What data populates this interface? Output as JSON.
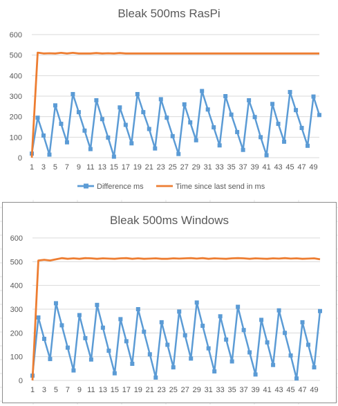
{
  "chart_data": [
    {
      "type": "line",
      "title": "Bleak 500ms RasPi",
      "ylim": [
        0,
        600
      ],
      "yticks": [
        0,
        100,
        200,
        300,
        400,
        500,
        600
      ],
      "x": [
        1,
        2,
        3,
        4,
        5,
        6,
        7,
        8,
        9,
        10,
        11,
        12,
        13,
        14,
        15,
        16,
        17,
        18,
        19,
        20,
        21,
        22,
        23,
        24,
        25,
        26,
        27,
        28,
        29,
        30,
        31,
        32,
        33,
        34,
        35,
        36,
        37,
        38,
        39,
        40,
        41,
        42,
        43,
        44,
        45,
        46,
        47,
        48,
        49,
        50
      ],
      "xtick_labels": [
        "1",
        "3",
        "5",
        "7",
        "9",
        "11",
        "13",
        "15",
        "17",
        "19",
        "21",
        "23",
        "25",
        "27",
        "29",
        "31",
        "33",
        "35",
        "37",
        "39",
        "41",
        "43",
        "45",
        "47",
        "49"
      ],
      "grid": true,
      "legend": "bottom",
      "series": [
        {
          "name": "Difference ms",
          "color": "#5B9BD5",
          "marker": "square",
          "values": [
            20,
            195,
            108,
            15,
            255,
            165,
            75,
            310,
            222,
            132,
            42,
            280,
            188,
            98,
            5,
            245,
            160,
            70,
            310,
            222,
            140,
            45,
            285,
            195,
            105,
            18,
            260,
            172,
            85,
            325,
            235,
            148,
            60,
            300,
            210,
            125,
            38,
            280,
            198,
            100,
            12,
            262,
            165,
            78,
            320,
            232,
            145,
            58,
            298,
            208
          ]
        },
        {
          "name": "Time since last send in ms",
          "color": "#ED7D31",
          "marker": "none",
          "values": [
            0,
            512,
            508,
            509,
            508,
            511,
            508,
            511,
            508,
            508,
            508,
            510,
            508,
            509,
            508,
            510,
            508,
            508,
            508,
            508,
            508,
            508,
            508,
            508,
            508,
            508,
            508,
            508,
            508,
            508,
            508,
            508,
            508,
            508,
            508,
            508,
            508,
            508,
            508,
            508,
            508,
            508,
            508,
            508,
            508,
            508,
            508,
            508,
            508,
            508
          ]
        }
      ]
    },
    {
      "type": "line",
      "title": "Bleak 500ms Windows",
      "ylim": [
        0,
        600
      ],
      "yticks": [
        0,
        100,
        200,
        300,
        400,
        500,
        600
      ],
      "x": [
        1,
        2,
        3,
        4,
        5,
        6,
        7,
        8,
        9,
        10,
        11,
        12,
        13,
        14,
        15,
        16,
        17,
        18,
        19,
        20,
        21,
        22,
        23,
        24,
        25,
        26,
        27,
        28,
        29,
        30,
        31,
        32,
        33,
        34,
        35,
        36,
        37,
        38,
        39,
        40,
        41,
        42,
        43,
        44,
        45,
        46,
        47,
        48,
        49,
        50
      ],
      "xtick_labels": [
        "1",
        "3",
        "5",
        "7",
        "9",
        "11",
        "13",
        "15",
        "17",
        "19",
        "21",
        "23",
        "25",
        "27",
        "29",
        "31",
        "33",
        "35",
        "37",
        "39",
        "41",
        "43",
        "45",
        "47",
        "49"
      ],
      "grid": true,
      "legend": "none",
      "series": [
        {
          "name": "Difference ms",
          "color": "#5B9BD5",
          "marker": "square",
          "values": [
            20,
            265,
            175,
            90,
            325,
            232,
            138,
            42,
            275,
            178,
            88,
            318,
            222,
            125,
            30,
            258,
            165,
            70,
            300,
            205,
            110,
            12,
            245,
            150,
            55,
            290,
            190,
            92,
            328,
            230,
            135,
            38,
            270,
            172,
            80,
            310,
            212,
            118,
            25,
            255,
            160,
            65,
            295,
            200,
            105,
            8,
            245,
            150,
            55,
            292
          ]
        },
        {
          "name": "Time since last send in ms",
          "color": "#ED7D31",
          "marker": "none",
          "values": [
            0,
            505,
            508,
            505,
            510,
            515,
            512,
            514,
            512,
            515,
            514,
            512,
            514,
            513,
            512,
            514,
            515,
            512,
            514,
            512,
            513,
            514,
            512,
            512,
            514,
            513,
            514,
            515,
            513,
            515,
            512,
            514,
            513,
            512,
            514,
            515,
            514,
            512,
            514,
            513,
            512,
            514,
            513,
            515,
            513,
            514,
            512,
            513,
            514,
            510
          ]
        }
      ]
    }
  ]
}
